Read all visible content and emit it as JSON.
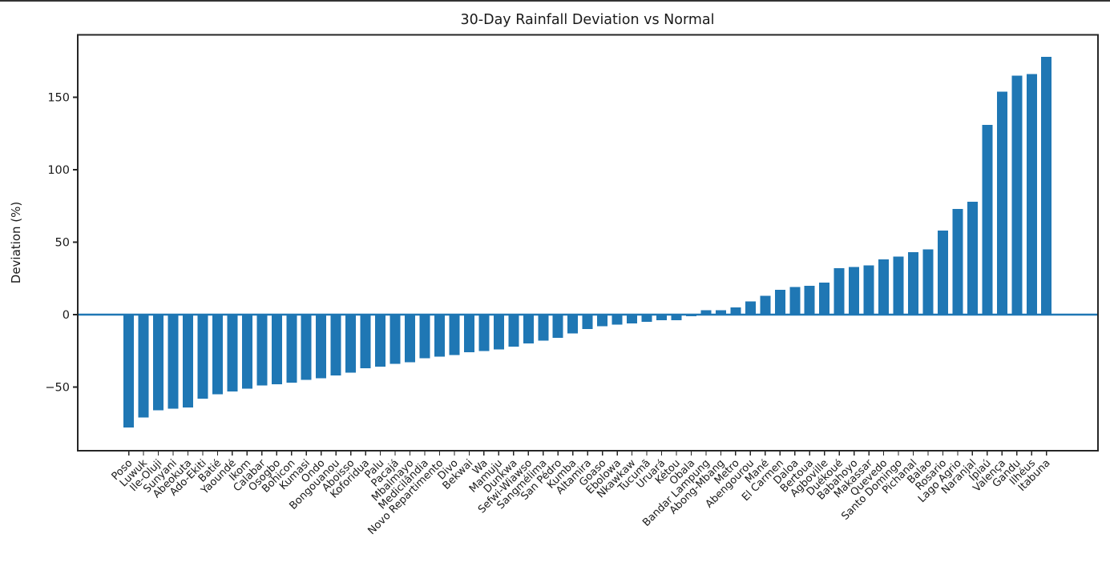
{
  "chart_data": {
    "type": "bar",
    "title": "30-Day Rainfall Deviation vs Normal",
    "ylabel": "Deviation (%)",
    "xlabel": "",
    "legend": null,
    "grid": false,
    "bar_color": "#1f77b4",
    "zero_line_color": "#1f77b4",
    "axis_color": "#262626",
    "ylim": [
      -94,
      193
    ],
    "yticks": [
      -50,
      0,
      50,
      100,
      150
    ],
    "categories": [
      "Poso",
      "Luwuk",
      "Ile-Oluji",
      "Sunyani",
      "Abeokuta",
      "Ado-Ekiti",
      "Batié",
      "Yaoundé",
      "Ikom",
      "Calabar",
      "Osogbo",
      "Bohicon",
      "Kumasi",
      "Ondo",
      "Bongouanou",
      "Aboisso",
      "Koforidua",
      "Palu",
      "Pacajá",
      "Mbalmayo",
      "Medicilândia",
      "Novo Repartimento",
      "Divo",
      "Bekwai",
      "Wa",
      "Mamuju",
      "Dunkwa",
      "Sefwi-Wiawso",
      "Sangmélima",
      "San Pédro",
      "Kumba",
      "Altamira",
      "Goaso",
      "Ebolowa",
      "Nkawkaw",
      "Tucumã",
      "Uruará",
      "Kétou",
      "Obala",
      "Bandar Lampung",
      "Abong-Mbang",
      "Metro",
      "Abengourou",
      "Mané",
      "El Carmen",
      "Daloa",
      "Bertoua",
      "Agboville",
      "Duékoué",
      "Babahoyo",
      "Makassar",
      "Quevedo",
      "Santo Domingo",
      "Pichanal",
      "Balao",
      "Rosario",
      "Lago Agrio",
      "Naranjal",
      "Ipiaú",
      "Valença",
      "Gandu",
      "Ilhéus",
      "Itabuna"
    ],
    "values": [
      -78,
      -71,
      -66,
      -65,
      -64,
      -58,
      -55,
      -53,
      -51,
      -49,
      -48,
      -47,
      -45,
      -44,
      -42,
      -40,
      -37,
      -36,
      -34,
      -33,
      -30,
      -29,
      -28,
      -26,
      -25,
      -24,
      -22,
      -20,
      -18,
      -16,
      -13,
      -10,
      -8,
      -7,
      -6,
      -5,
      -4,
      -4,
      -1,
      3,
      3,
      5,
      9,
      13,
      17,
      19,
      20,
      22,
      32,
      33,
      34,
      38,
      40,
      43,
      45,
      58,
      73,
      78,
      131,
      154,
      165,
      166,
      178
    ]
  }
}
